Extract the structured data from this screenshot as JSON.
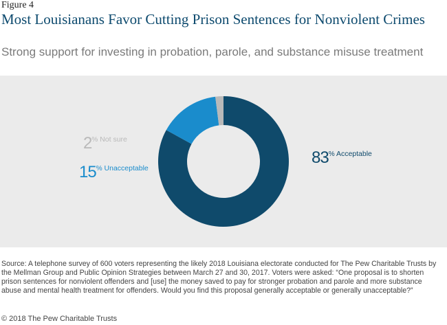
{
  "figure_label": "Figure 4",
  "title": "Most Louisianans Favor Cutting Prison Sentences for Nonviolent Crimes",
  "subtitle": "Strong support for investing in probation, parole, and substance misuse treatment",
  "source": "Source: A telephone survey of 600 voters representing the likely 2018 Louisiana electorate conducted for The Pew Charitable Trusts by the Mellman Group and Public Opinion Strategies between March 27 and 30, 2017. Voters were asked: “One proposal is to shorten prison sentences for nonviolent offenders and [use] the money saved to pay for stronger probation and parole and more substance abuse and mental health treatment for offenders. Would you find this proposal generally acceptable or generally unacceptable?”",
  "copyright": "© 2018 The Pew Charitable Trusts",
  "colors": {
    "acceptable": "#0f4a6b",
    "unacceptable": "#1a8ccc",
    "not_sure": "#b9b9b9",
    "panel": "#ebebeb"
  },
  "chart_data": {
    "type": "pie",
    "style": "donut",
    "categories": [
      "Acceptable",
      "Unacceptable",
      "Not sure"
    ],
    "values": [
      83,
      15,
      2
    ],
    "value_suffix": "%",
    "labels": [
      {
        "value": "83",
        "unit": "%",
        "text": "Acceptable",
        "color_key": "acceptable"
      },
      {
        "value": "15",
        "unit": "%",
        "text": "Unacceptable",
        "color_key": "unacceptable"
      },
      {
        "value": "2",
        "unit": "%",
        "text": "Not sure",
        "color_key": "not_sure"
      }
    ]
  }
}
